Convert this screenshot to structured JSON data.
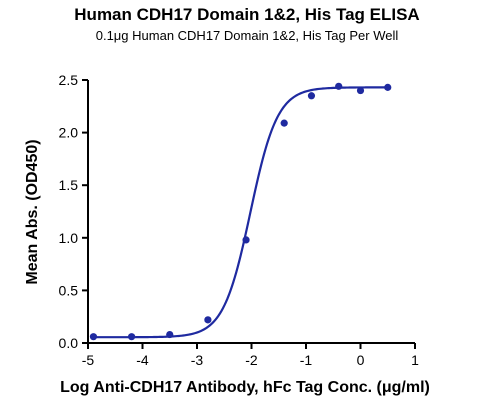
{
  "chart_data": {
    "type": "scatter",
    "title": "Human CDH17 Domain 1&2, His Tag ELISA",
    "subtitle": "0.1μg Human CDH17 Domain 1&2, His Tag Per Well",
    "xlabel": "Log Anti-CDH17 Antibody, hFc Tag Conc. (μg/ml)",
    "ylabel": "Mean Abs. (OD450)",
    "xlim": [
      -5,
      1
    ],
    "ylim": [
      0,
      2.5
    ],
    "xticks": [
      "-5",
      "-4",
      "-3",
      "-2",
      "-1",
      "0",
      "1"
    ],
    "yticks": [
      "0.0",
      "0.5",
      "1.0",
      "1.5",
      "2.0",
      "2.5"
    ],
    "grid": false,
    "line_color": "#1f2aa0",
    "series": [
      {
        "points": [
          {
            "x": -4.9,
            "y": 0.06
          },
          {
            "x": -4.2,
            "y": 0.06
          },
          {
            "x": -3.5,
            "y": 0.08
          },
          {
            "x": -2.8,
            "y": 0.22
          },
          {
            "x": -2.1,
            "y": 0.98
          },
          {
            "x": -1.4,
            "y": 2.09
          },
          {
            "x": -0.9,
            "y": 2.35
          },
          {
            "x": -0.4,
            "y": 2.44
          },
          {
            "x": 0.0,
            "y": 2.4
          },
          {
            "x": 0.5,
            "y": 2.43
          }
        ],
        "fit": {
          "bottom": 0.055,
          "top": 2.43,
          "logEC50": -2.02,
          "hill": 1.75
        }
      }
    ]
  }
}
